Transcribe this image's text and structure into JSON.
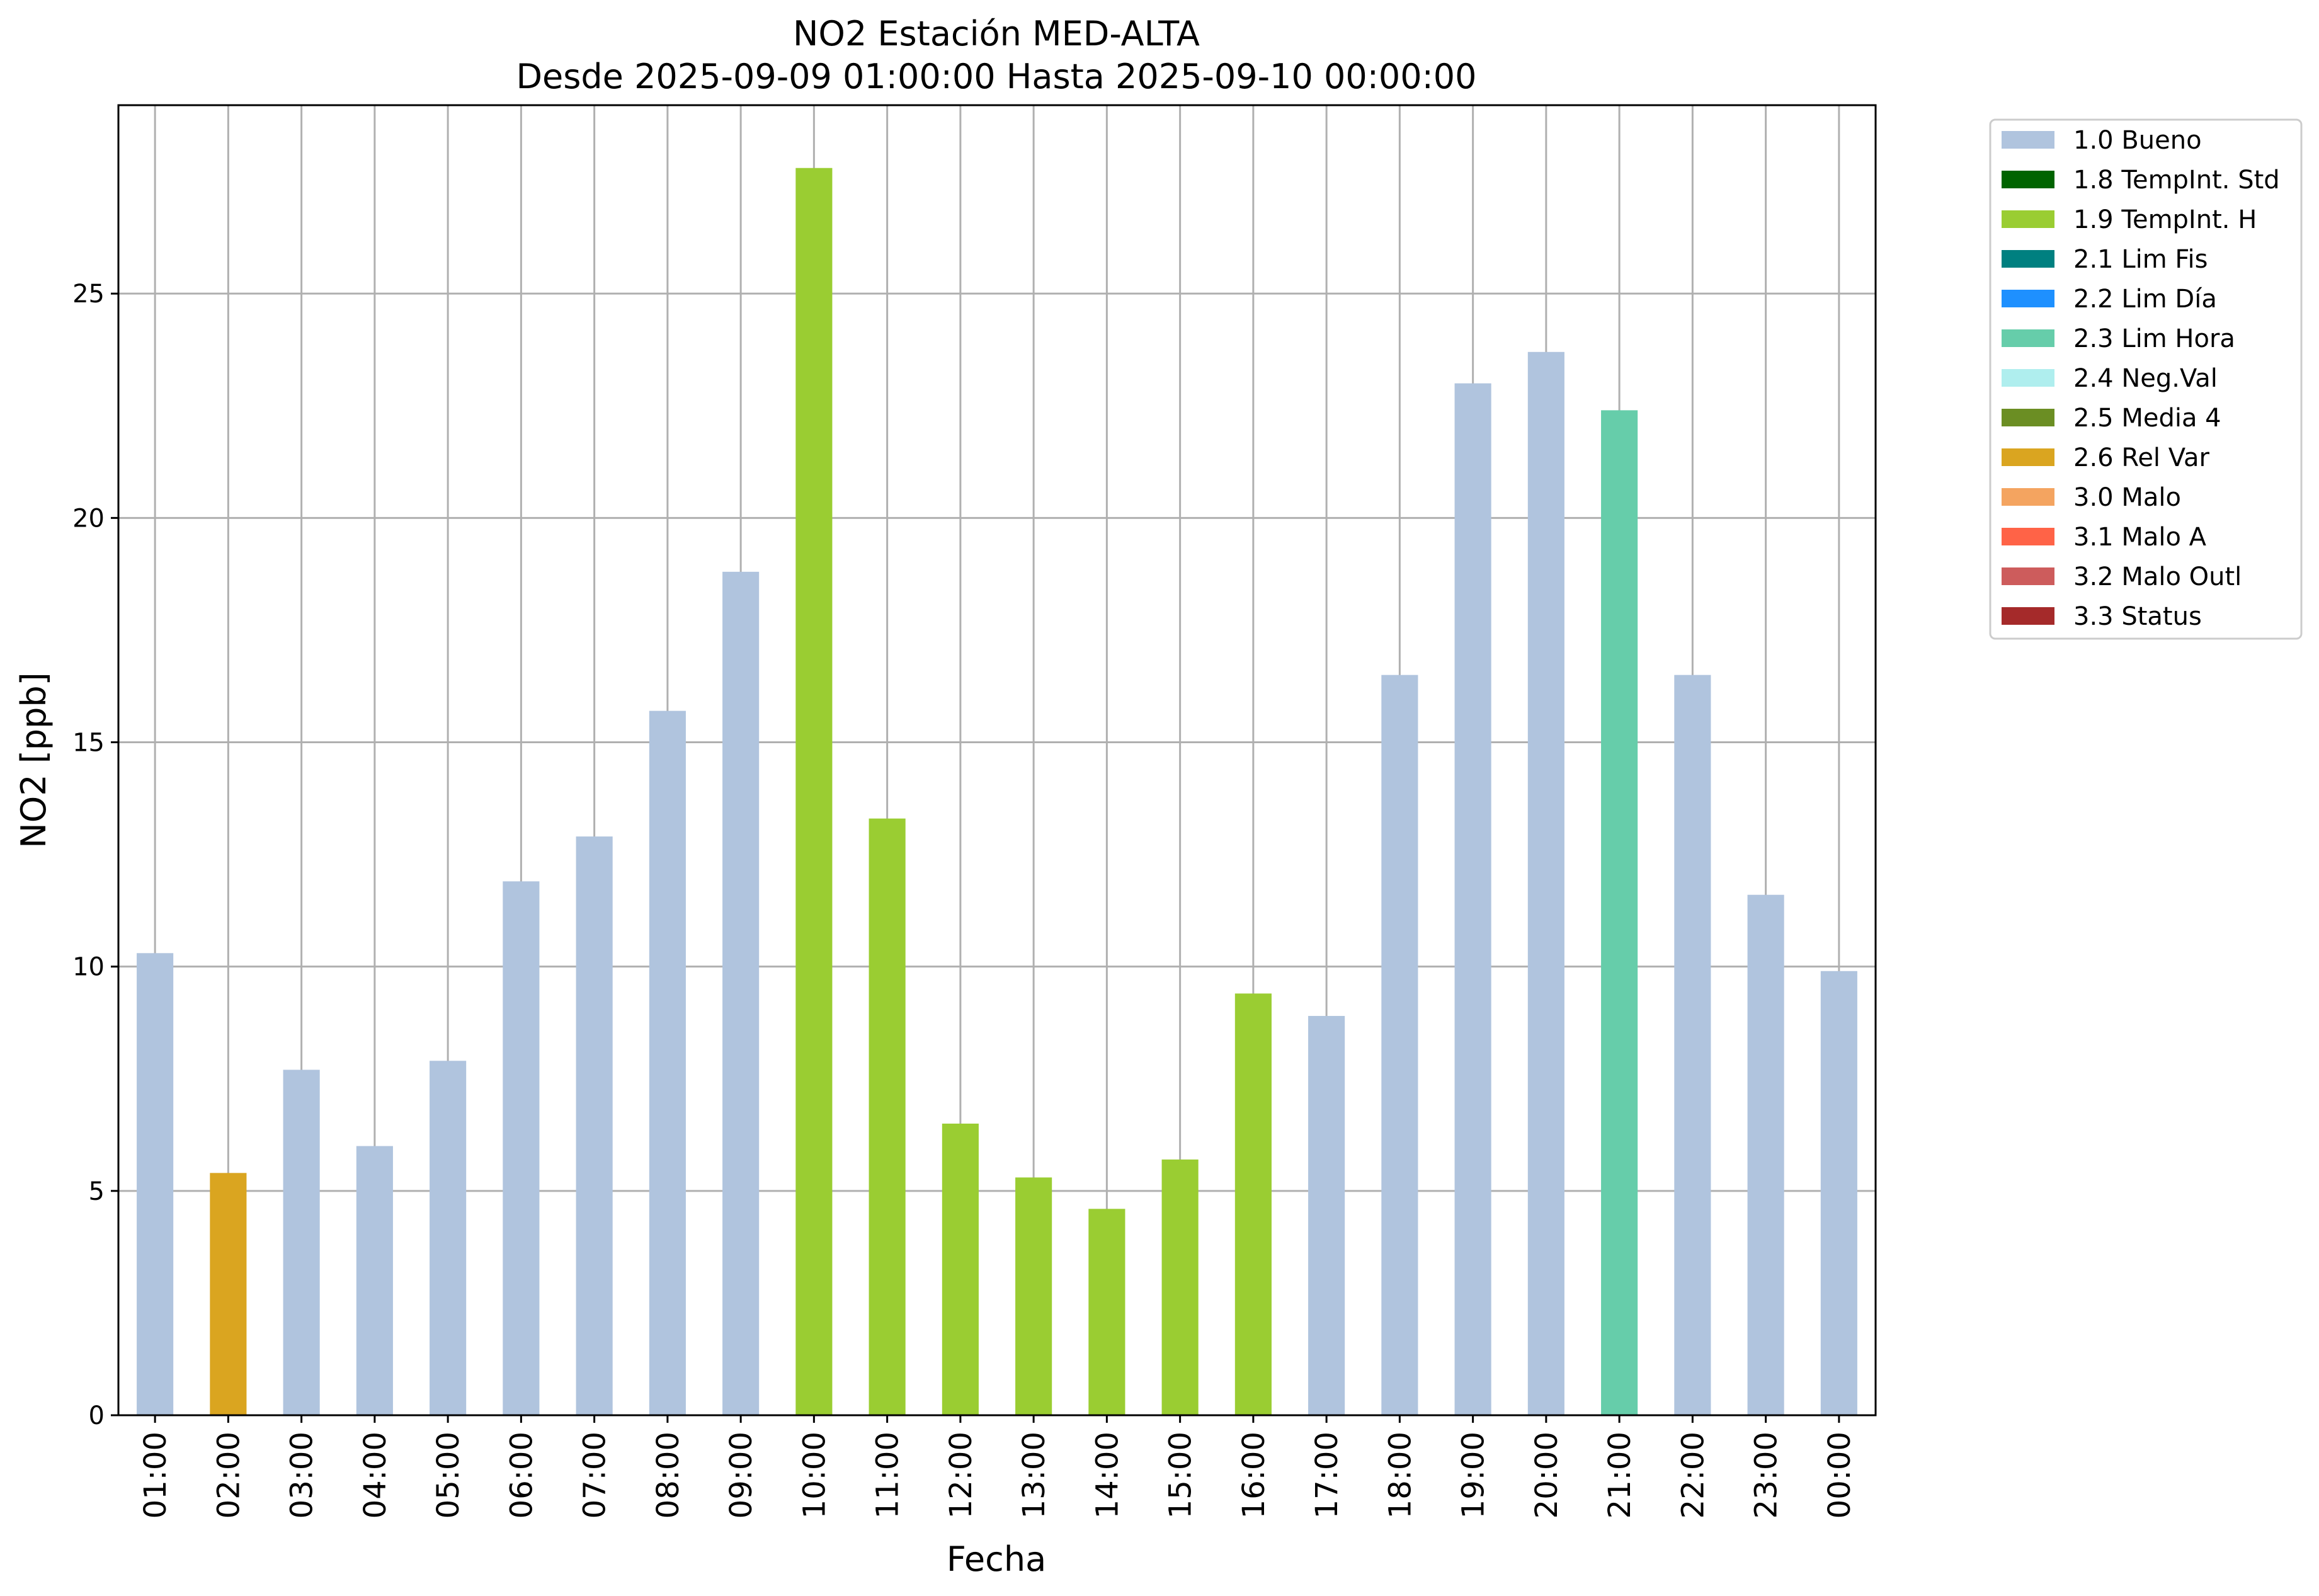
{
  "chart_data": {
    "type": "bar",
    "title": "NO2 Estación MED-ALTA",
    "subtitle": "Desde 2025-09-09 01:00:00 Hasta 2025-09-10 00:00:00",
    "xlabel": "Fecha",
    "ylabel": "NO2 [ppb]",
    "ylim": [
      0,
      29.2
    ],
    "yticks": [
      0,
      5,
      10,
      15,
      20,
      25
    ],
    "grid": true,
    "legend_position": "outside-right-top",
    "categories": [
      "01:00",
      "02:00",
      "03:00",
      "04:00",
      "05:00",
      "06:00",
      "07:00",
      "08:00",
      "09:00",
      "10:00",
      "11:00",
      "12:00",
      "13:00",
      "14:00",
      "15:00",
      "16:00",
      "17:00",
      "18:00",
      "19:00",
      "20:00",
      "21:00",
      "22:00",
      "23:00",
      "00:00"
    ],
    "values": [
      10.3,
      5.4,
      7.7,
      6.0,
      7.9,
      11.9,
      12.9,
      15.7,
      18.8,
      27.8,
      13.3,
      6.5,
      5.3,
      4.6,
      5.7,
      9.4,
      8.9,
      16.5,
      23.0,
      23.7,
      22.4,
      16.5,
      11.6,
      9.9
    ],
    "flags": [
      "1.0 Bueno",
      "2.6 Rel Var",
      "1.0 Bueno",
      "1.0 Bueno",
      "1.0 Bueno",
      "1.0 Bueno",
      "1.0 Bueno",
      "1.0 Bueno",
      "1.0 Bueno",
      "1.9 TempInt. H",
      "1.9 TempInt. H",
      "1.9 TempInt. H",
      "1.9 TempInt. H",
      "1.9 TempInt. H",
      "1.9 TempInt. H",
      "1.9 TempInt. H",
      "1.0 Bueno",
      "1.0 Bueno",
      "1.0 Bueno",
      "1.0 Bueno",
      "2.3 Lim Hora",
      "1.0 Bueno",
      "1.0 Bueno",
      "1.0 Bueno"
    ],
    "legend": [
      {
        "name": "1.0 Bueno",
        "color": "#b0c4de"
      },
      {
        "name": "1.8 TempInt. Std",
        "color": "#006400"
      },
      {
        "name": "1.9 TempInt. H",
        "color": "#9acd32"
      },
      {
        "name": "2.1 Lim Fis",
        "color": "#008080"
      },
      {
        "name": "2.2 Lim Día",
        "color": "#1e90ff"
      },
      {
        "name": "2.3 Lim Hora",
        "color": "#66cdaa"
      },
      {
        "name": "2.4 Neg.Val",
        "color": "#afeeee"
      },
      {
        "name": "2.5 Media 4",
        "color": "#6b8e23"
      },
      {
        "name": "2.6 Rel Var",
        "color": "#daa520"
      },
      {
        "name": "3.0 Malo",
        "color": "#f4a460"
      },
      {
        "name": "3.1 Malo A",
        "color": "#ff6347"
      },
      {
        "name": "3.2 Malo Outl",
        "color": "#cd5c5c"
      },
      {
        "name": "3.3 Status",
        "color": "#a52a2a"
      }
    ]
  }
}
